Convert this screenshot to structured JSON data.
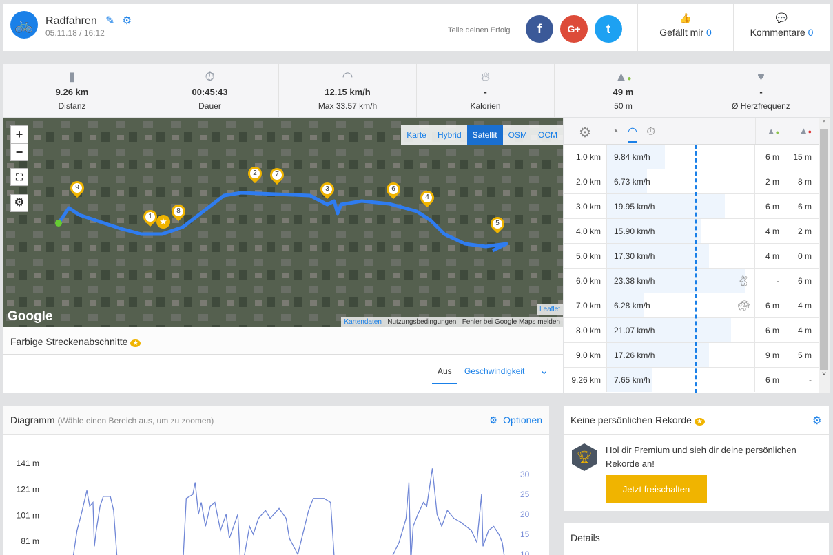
{
  "header": {
    "title": "Radfahren",
    "date": "05.11.18 / 16:12",
    "share_label": "Teile deinen Erfolg",
    "like_label": "Gefällt mir",
    "like_count": "0",
    "comment_label": "Kommentare",
    "comment_count": "0",
    "social": [
      "f",
      "G+",
      "t"
    ]
  },
  "stats": [
    {
      "icon": "road-icon",
      "value": "9.26 km",
      "label": "Distanz"
    },
    {
      "icon": "stopwatch-icon",
      "value": "00:45:43",
      "label": "Dauer"
    },
    {
      "icon": "speedometer-icon",
      "value": "12.15 km/h",
      "label": "Max 33.57 km/h"
    },
    {
      "icon": "flame-icon",
      "value": "-",
      "label": "Kalorien"
    },
    {
      "icon": "elevation-up-icon",
      "value": "49 m",
      "label": "50 m"
    },
    {
      "icon": "heart-icon",
      "value": "-",
      "label": "Ø Herzfrequenz"
    }
  ],
  "map": {
    "layers": [
      "Karte",
      "Hybrid",
      "Satellit",
      "OSM",
      "OCM"
    ],
    "active_layer": "Satellit",
    "google": "Google",
    "leaflet": "Leaflet",
    "attribution": [
      "Kartendaten",
      "Nutzungsbedingungen",
      "Fehler bei Google Maps melden"
    ],
    "markers": [
      "1",
      "2",
      "3",
      "4",
      "5",
      "6",
      "7",
      "8",
      "9"
    ],
    "route_color": "#2f7cf0"
  },
  "segments": {
    "title": "Farbige Streckenabschnitte",
    "tabs": [
      "Aus",
      "Geschwindigkeit"
    ],
    "active_tab": "Aus"
  },
  "splits": {
    "average_speed": 12.15,
    "max_bar": 25,
    "rows": [
      {
        "km": "1.0 km",
        "speed": "9.84 km/h",
        "v": 9.84,
        "up": "6 m",
        "down": "15 m",
        "badge": ""
      },
      {
        "km": "2.0 km",
        "speed": "6.73 km/h",
        "v": 6.73,
        "up": "2 m",
        "down": "8 m",
        "badge": ""
      },
      {
        "km": "3.0 km",
        "speed": "19.95 km/h",
        "v": 19.95,
        "up": "6 m",
        "down": "6 m",
        "badge": ""
      },
      {
        "km": "4.0 km",
        "speed": "15.90 km/h",
        "v": 15.9,
        "up": "4 m",
        "down": "2 m",
        "badge": ""
      },
      {
        "km": "5.0 km",
        "speed": "17.30 km/h",
        "v": 17.3,
        "up": "4 m",
        "down": "0 m",
        "badge": ""
      },
      {
        "km": "6.0 km",
        "speed": "23.38 km/h",
        "v": 23.38,
        "up": "-",
        "down": "6 m",
        "badge": "rabbit"
      },
      {
        "km": "7.0 km",
        "speed": "6.28 km/h",
        "v": 6.28,
        "up": "6 m",
        "down": "4 m",
        "badge": "turtle"
      },
      {
        "km": "8.0 km",
        "speed": "21.07 km/h",
        "v": 21.07,
        "up": "6 m",
        "down": "4 m",
        "badge": ""
      },
      {
        "km": "9.0 km",
        "speed": "17.26 km/h",
        "v": 17.26,
        "up": "9 m",
        "down": "5 m",
        "badge": ""
      },
      {
        "km": "9.26 km",
        "speed": "7.65 km/h",
        "v": 7.65,
        "up": "6 m",
        "down": "-",
        "badge": ""
      }
    ]
  },
  "diagram": {
    "title": "Diagramm",
    "hint": "(Wähle einen Bereich aus, um zu zoomen)",
    "options": "Optionen"
  },
  "chart_data": {
    "type": "line",
    "left_axis_ticks": [
      "141 m",
      "121 m",
      "101 m",
      "81 m"
    ],
    "right_axis_ticks": [
      "30",
      "25",
      "20",
      "15",
      "10"
    ],
    "ylim_right": [
      10,
      30
    ],
    "series": [
      {
        "color": "#6f86d6",
        "x": [
          0,
          0.1,
          0.19,
          0.31,
          0.37,
          0.44,
          0.47,
          0.51,
          0.59,
          0.66,
          0.81,
          0.88,
          0.96,
          2.36,
          2.43,
          2.57,
          2.62,
          2.69,
          2.75,
          2.84,
          2.94,
          3.04,
          3.16,
          3.28,
          3.35,
          3.53,
          3.6,
          3.78,
          3.86,
          3.97,
          4.12,
          4.22,
          4.41,
          4.56,
          4.63,
          4.81,
          5.04,
          5.14,
          5.37,
          5.51,
          5.61,
          6.68,
          6.97,
          7.12,
          7.18,
          7.22,
          7.27,
          7.37,
          7.49,
          7.56,
          7.68,
          7.78,
          7.88,
          8.0,
          8.14,
          8.29,
          8.51,
          8.63,
          8.73,
          8.76,
          8.88,
          8.99,
          9.1,
          9.17,
          9.26
        ],
        "y": [
          8,
          16,
          20,
          26,
          22,
          23,
          12,
          16,
          22,
          24.5,
          24.5,
          21,
          8,
          8,
          24,
          25,
          28,
          20,
          23,
          17,
          22,
          23,
          16,
          20,
          14,
          20,
          5,
          17,
          15,
          19,
          21,
          19,
          21.5,
          19,
          14,
          10,
          21,
          24,
          24,
          23,
          5,
          6,
          13,
          19,
          28,
          8,
          17,
          20,
          23,
          22,
          31.5,
          20,
          17,
          21,
          19,
          18,
          16,
          13,
          25,
          12,
          16,
          17,
          15,
          13,
          6
        ]
      }
    ]
  },
  "records": {
    "title": "Keine persönlichen Rekorde",
    "text": "Hol dir Premium und sieh dir deine persönlichen Rekorde an!",
    "button": "Jetzt freischalten"
  },
  "details": {
    "title": "Details"
  }
}
